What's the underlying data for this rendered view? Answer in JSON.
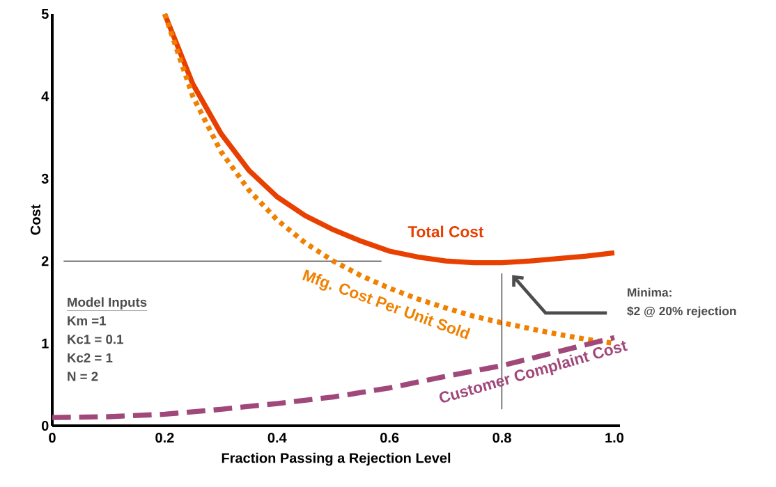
{
  "chart_data": {
    "type": "line",
    "xlabel": "Fraction Passing a Rejection Level",
    "ylabel": "Cost",
    "xlim": [
      0,
      1.01
    ],
    "ylim": [
      0,
      5
    ],
    "xticks": [
      0,
      0.2,
      0.4,
      0.6,
      0.8,
      {
        "value": 1.0,
        "label": "1.0"
      }
    ],
    "yticks": [
      0,
      1,
      2,
      3,
      4,
      5
    ],
    "series": [
      {
        "name": "Total Cost",
        "color": "#e84000",
        "line_style": "solid",
        "x": [
          0.2,
          0.25,
          0.3,
          0.35,
          0.4,
          0.45,
          0.5,
          0.55,
          0.6,
          0.65,
          0.7,
          0.75,
          0.8,
          0.85,
          0.9,
          0.95,
          1.0
        ],
        "values": [
          5.0,
          4.15,
          3.55,
          3.1,
          2.78,
          2.55,
          2.38,
          2.24,
          2.12,
          2.05,
          2.0,
          1.98,
          1.98,
          2.0,
          2.03,
          2.06,
          2.1
        ]
      },
      {
        "name": "Mfg. Cost Per Unit Sold",
        "color": "#f08000",
        "line_style": "dotted",
        "x": [
          0.2,
          0.25,
          0.3,
          0.35,
          0.4,
          0.45,
          0.5,
          0.55,
          0.6,
          0.65,
          0.7,
          0.75,
          0.8,
          0.85,
          0.9,
          0.95,
          1.0
        ],
        "values": [
          5.0,
          4.0,
          3.33,
          2.86,
          2.5,
          2.22,
          2.0,
          1.82,
          1.67,
          1.54,
          1.43,
          1.33,
          1.25,
          1.18,
          1.11,
          1.05,
          1.0
        ]
      },
      {
        "name": "Customer Complaint Cost",
        "color": "#a0487a",
        "line_style": "dashed",
        "x": [
          0,
          0.1,
          0.2,
          0.3,
          0.4,
          0.5,
          0.6,
          0.7,
          0.8,
          0.9,
          1.0
        ],
        "values": [
          0.1,
          0.11,
          0.14,
          0.2,
          0.27,
          0.35,
          0.46,
          0.6,
          0.73,
          0.9,
          1.07
        ]
      }
    ],
    "ref_lines": [
      {
        "axis": "y",
        "value": 2,
        "color": "#000000"
      },
      {
        "axis": "x",
        "value": 0.8,
        "color": "#000000"
      }
    ],
    "annotations": [
      "Model Inputs",
      "Km =1",
      "Kc1 = 0.1",
      "Kc2 = 1",
      "N = 2",
      "Minima:",
      "$2 @ 20% rejection"
    ]
  }
}
